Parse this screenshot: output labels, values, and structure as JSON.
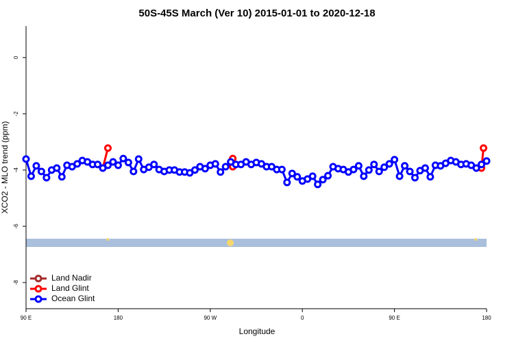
{
  "chart_data": {
    "type": "line",
    "title": "50S-45S March (Ver 10)   2015-01-01 to 2020-12-18",
    "xlabel": "Longitude",
    "ylabel": "XCO2 - MLO trend (ppm)",
    "xlim": [
      90,
      540
    ],
    "xticks": [
      {
        "value": 90,
        "label": "90 E"
      },
      {
        "value": 180,
        "label": "180"
      },
      {
        "value": 270,
        "label": "90 W"
      },
      {
        "value": 360,
        "label": "0"
      },
      {
        "value": 450,
        "label": "90 E"
      },
      {
        "value": 540,
        "label": "180"
      }
    ],
    "ylim": [
      -8.93,
      1.12
    ],
    "yticks": [
      0,
      -2,
      -4,
      -6,
      -8
    ],
    "legend": "bottom-left",
    "series": [
      {
        "name": "Land Nadir",
        "color": "#a52a2a",
        "x": [],
        "values": []
      },
      {
        "name": "Land Glint",
        "color": "#ff0000",
        "x": [
          165,
          170,
          null,
          292,
          292,
          null,
          535,
          537
        ],
        "values": [
          -3.93,
          -3.22,
          null,
          -3.88,
          -3.59,
          null,
          -3.93,
          -3.22
        ]
      },
      {
        "name": "Ocean Glint",
        "color": "#0000ff",
        "x": [
          90,
          95,
          100,
          105,
          110,
          115,
          120,
          125,
          130,
          135,
          140,
          145,
          150,
          155,
          160,
          165,
          170,
          175,
          180,
          185,
          190,
          195,
          200,
          205,
          210,
          215,
          220,
          225,
          230,
          235,
          240,
          245,
          250,
          255,
          260,
          265,
          270,
          275,
          280,
          285,
          290,
          295,
          300,
          305,
          310,
          315,
          320,
          325,
          330,
          335,
          340,
          345,
          350,
          355,
          360,
          365,
          370,
          375,
          380,
          385,
          390,
          395,
          400,
          405,
          410,
          415,
          420,
          425,
          430,
          435,
          440,
          445,
          450,
          455,
          460,
          465,
          470,
          475,
          480,
          485,
          490,
          495,
          500,
          505,
          510,
          515,
          520,
          525,
          530,
          535,
          540
        ],
        "values": [
          -3.61,
          -4.22,
          -3.85,
          -4.05,
          -4.27,
          -4.0,
          -3.93,
          -4.24,
          -3.83,
          -3.88,
          -3.78,
          -3.66,
          -3.71,
          -3.8,
          -3.8,
          -3.93,
          -3.83,
          -3.71,
          -3.83,
          -3.59,
          -3.73,
          -4.05,
          -3.61,
          -3.98,
          -3.9,
          -3.8,
          -3.98,
          -4.05,
          -4.0,
          -4.0,
          -4.07,
          -4.07,
          -4.1,
          -4.0,
          -3.88,
          -3.95,
          -3.83,
          -3.78,
          -4.07,
          -3.88,
          -3.71,
          -3.8,
          -3.8,
          -3.71,
          -3.8,
          -3.73,
          -3.78,
          -3.88,
          -3.88,
          -3.98,
          -3.98,
          -4.44,
          -4.12,
          -4.24,
          -4.39,
          -4.32,
          -4.22,
          -4.51,
          -4.34,
          -4.2,
          -3.88,
          -3.95,
          -3.98,
          -4.07,
          -3.98,
          -3.85,
          -4.22,
          -4.0,
          -3.8,
          -4.05,
          -3.9,
          -3.78,
          -3.63,
          -4.22,
          -3.85,
          -4.05,
          -4.27,
          -4.02,
          -3.93,
          -4.24,
          -3.83,
          -3.85,
          -3.76,
          -3.66,
          -3.71,
          -3.8,
          -3.78,
          -3.83,
          -3.93,
          -3.8,
          -3.68
        ]
      }
    ]
  }
}
